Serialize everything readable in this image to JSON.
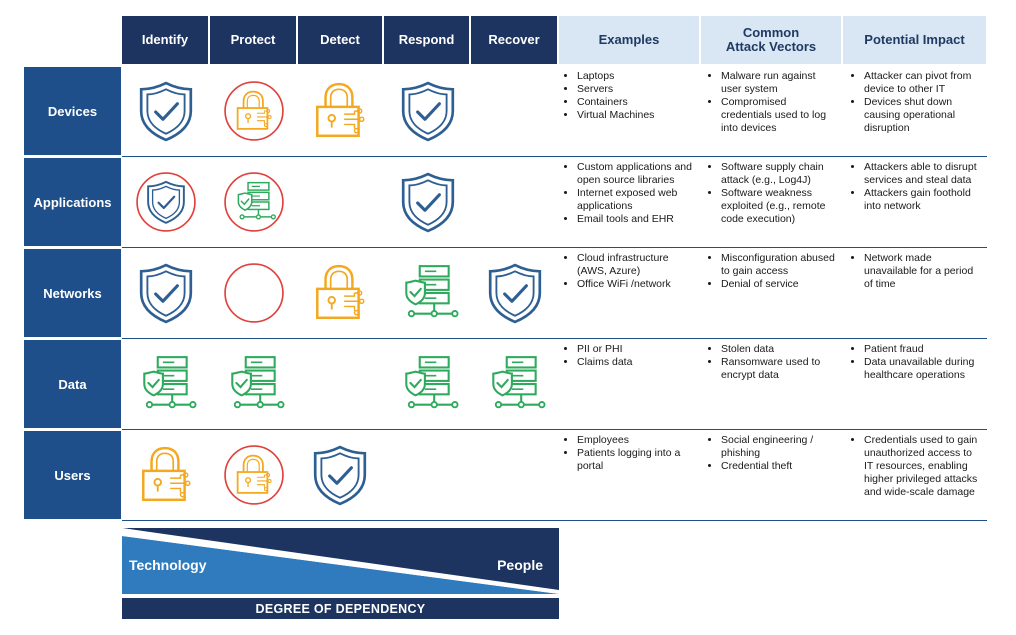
{
  "columns": [
    "Identify",
    "Protect",
    "Detect",
    "Respond",
    "Recover"
  ],
  "info_columns": [
    "Examples",
    "Common Attack Vectors",
    "Potential Impact"
  ],
  "rows": [
    {
      "label": "Devices",
      "icons": [
        "shield",
        "lock-red-ring",
        "lock",
        "shield",
        ""
      ],
      "examples": [
        "Laptops",
        "Servers",
        "Containers",
        "Virtual Machines"
      ],
      "vectors": [
        "Malware run against user system",
        "Compromised credentials used to log into devices"
      ],
      "impact": [
        "Attacker can pivot from device to other IT",
        "Devices shut down causing operational disruption"
      ]
    },
    {
      "label": "Applications",
      "icons": [
        "shield-red-ring",
        "server-red-ring",
        "",
        "shield",
        ""
      ],
      "examples": [
        "Custom applications and open source libraries",
        "Internet exposed web applications",
        "Email tools and EHR"
      ],
      "vectors": [
        "Software supply chain attack (e.g., Log4J)",
        "Software weakness exploited (e.g., remote code execution)"
      ],
      "impact": [
        "Attackers able to disrupt services and steal data",
        "Attackers gain foothold into network"
      ]
    },
    {
      "label": "Networks",
      "icons": [
        "shield",
        "red-ring",
        "lock",
        "server",
        "shield"
      ],
      "examples": [
        "Cloud infrastructure (AWS, Azure)",
        "Office WiFi /network"
      ],
      "vectors": [
        "Misconfiguration abused to gain access",
        "Denial of service"
      ],
      "impact": [
        "Network made unavailable for a period of time"
      ]
    },
    {
      "label": "Data",
      "icons": [
        "server",
        "server",
        "",
        "server",
        "server"
      ],
      "examples": [
        "PII or PHI",
        "Claims data"
      ],
      "vectors": [
        "Stolen data",
        "Ransomware used to encrypt data"
      ],
      "impact": [
        "Patient fraud",
        "Data unavailable during healthcare operations"
      ]
    },
    {
      "label": "Users",
      "icons": [
        "lock",
        "lock-red-ring",
        "shield",
        "",
        ""
      ],
      "examples": [
        "Employees",
        "Patients logging into a portal"
      ],
      "vectors": [
        "Social engineering / phishing",
        "Credential theft"
      ],
      "impact": [
        "Credentials used to gain unauthorized access to IT resources, enabling higher privileged attacks and wide-scale damage"
      ]
    }
  ],
  "banner": {
    "left_label": "Technology",
    "right_label": "People",
    "footer": "DEGREE OF DEPENDENCY"
  },
  "colors": {
    "header_dark": "#1e3460",
    "header_light": "#d9e6f3",
    "row_label": "#1e4f8a",
    "shield": "#2e5f93",
    "lock": "#f3a820",
    "server": "#2eaa5c",
    "ring": "#e0413c"
  }
}
